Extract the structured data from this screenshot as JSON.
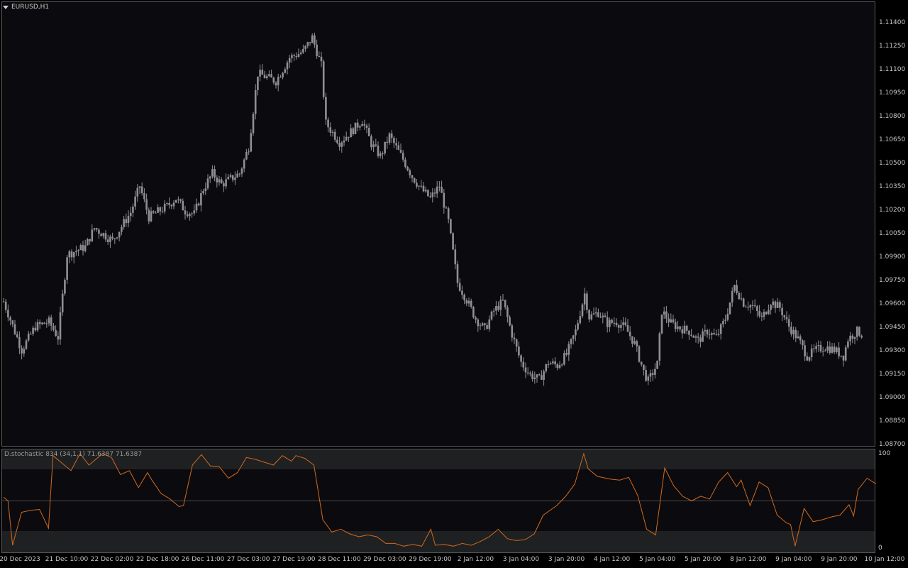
{
  "symbol": {
    "label": "EURUSD,H1"
  },
  "indicator": {
    "label": "D.stochastic 834 (34,1,1) 71.6387 71.6387",
    "level_high": "100",
    "level_low": "0",
    "line_color": "#d2691e",
    "band_color": "#1e2022",
    "mid_color": "#4a4a4a"
  },
  "colors": {
    "background": "#0b0b0f",
    "candle": "#8f8f95",
    "axis_text": "#c8c8c8",
    "frame": "#5a5a5a"
  },
  "price_axis": {
    "labels": [
      "1.11400",
      "1.11250",
      "1.11100",
      "1.10950",
      "1.10800",
      "1.10650",
      "1.10500",
      "1.10350",
      "1.10200",
      "1.10050",
      "1.09900",
      "1.09750",
      "1.09600",
      "1.09450",
      "1.09300",
      "1.09150",
      "1.09000",
      "1.08850",
      "1.08700"
    ]
  },
  "time_axis": {
    "labels": [
      "20 Dec 2023",
      "21 Dec 10:00",
      "22 Dec 02:00",
      "22 Dec 18:00",
      "26 Dec 11:00",
      "27 Dec 03:00",
      "27 Dec 19:00",
      "28 Dec 11:00",
      "29 Dec 03:00",
      "29 Dec 19:00",
      "2 Jan 12:00",
      "3 Jan 04:00",
      "3 Jan 20:00",
      "4 Jan 12:00",
      "5 Jan 04:00",
      "5 Jan 20:00",
      "8 Jan 12:00",
      "9 Jan 04:00",
      "9 Jan 20:00",
      "10 Jan 12:00"
    ]
  },
  "chart_data": [
    {
      "type": "candlestick",
      "title": "EURUSD,H1",
      "ylim": [
        1.0869,
        1.1144
      ],
      "close_path": [
        [
          0,
          1.0962
        ],
        [
          8,
          1.0931
        ],
        [
          14,
          1.0946
        ],
        [
          20,
          1.0949
        ],
        [
          24,
          1.0939
        ],
        [
          28,
          1.0992
        ],
        [
          36,
          1.0997
        ],
        [
          40,
          1.1009
        ],
        [
          48,
          1.1001
        ],
        [
          56,
          1.1019
        ],
        [
          60,
          1.1036
        ],
        [
          64,
          1.1016
        ],
        [
          72,
          1.1023
        ],
        [
          76,
          1.1028
        ],
        [
          80,
          1.102
        ],
        [
          84,
          1.1018
        ],
        [
          88,
          1.1034
        ],
        [
          92,
          1.1044
        ],
        [
          96,
          1.1037
        ],
        [
          104,
          1.1044
        ],
        [
          108,
          1.1061
        ],
        [
          112,
          1.1108
        ],
        [
          120,
          1.1103
        ],
        [
          126,
          1.1118
        ],
        [
          132,
          1.1122
        ],
        [
          136,
          1.1131
        ],
        [
          140,
          1.1113
        ],
        [
          142,
          1.1076
        ],
        [
          148,
          1.1064
        ],
        [
          154,
          1.1072
        ],
        [
          158,
          1.1078
        ],
        [
          162,
          1.1063
        ],
        [
          166,
          1.1055
        ],
        [
          170,
          1.1068
        ],
        [
          176,
          1.1053
        ],
        [
          180,
          1.1042
        ],
        [
          184,
          1.1034
        ],
        [
          188,
          1.1028
        ],
        [
          192,
          1.1036
        ],
        [
          196,
          1.1013
        ],
        [
          200,
          1.0974
        ],
        [
          204,
          1.0963
        ],
        [
          208,
          1.0951
        ],
        [
          212,
          1.0944
        ],
        [
          216,
          1.0956
        ],
        [
          220,
          1.0962
        ],
        [
          224,
          1.0941
        ],
        [
          228,
          1.0923
        ],
        [
          232,
          1.0915
        ],
        [
          236,
          1.0912
        ],
        [
          240,
          1.0923
        ],
        [
          244,
          1.0921
        ],
        [
          248,
          1.0928
        ],
        [
          252,
          1.0943
        ],
        [
          256,
          1.0967
        ],
        [
          258,
          1.0952
        ],
        [
          262,
          1.0955
        ],
        [
          266,
          1.0948
        ],
        [
          270,
          1.0949
        ],
        [
          274,
          1.0945
        ],
        [
          278,
          1.0935
        ],
        [
          282,
          1.0917
        ],
        [
          284,
          1.0911
        ],
        [
          288,
          1.0922
        ],
        [
          290,
          1.0956
        ],
        [
          294,
          1.0948
        ],
        [
          298,
          1.0945
        ],
        [
          302,
          1.0943
        ],
        [
          306,
          1.0937
        ],
        [
          310,
          1.0943
        ],
        [
          314,
          1.0939
        ],
        [
          318,
          1.0951
        ],
        [
          322,
          1.0972
        ],
        [
          326,
          1.0961
        ],
        [
          330,
          1.0959
        ],
        [
          334,
          1.0951
        ],
        [
          338,
          1.0962
        ],
        [
          342,
          1.0958
        ],
        [
          346,
          1.0946
        ],
        [
          350,
          1.0938
        ],
        [
          354,
          1.0927
        ],
        [
          358,
          1.0931
        ],
        [
          362,
          1.0933
        ],
        [
          366,
          1.0931
        ],
        [
          370,
          1.0927
        ],
        [
          372,
          1.0938
        ],
        [
          376,
          1.0943
        ],
        [
          378,
          1.0941
        ]
      ]
    },
    {
      "type": "line",
      "title": "D.stochastic 834 (34,1,1)",
      "ylim": [
        0,
        100
      ],
      "levels": [
        0,
        50,
        100
      ],
      "series": [
        {
          "name": "D.stochastic 834",
          "values": [
            [
              0,
              54
            ],
            [
              2,
              50
            ],
            [
              4,
              3
            ],
            [
              8,
              38
            ],
            [
              12,
              40
            ],
            [
              16,
              41
            ],
            [
              20,
              21
            ],
            [
              22,
              98
            ],
            [
              26,
              90
            ],
            [
              30,
              82
            ],
            [
              34,
              100
            ],
            [
              38,
              88
            ],
            [
              44,
              100
            ],
            [
              48,
              96
            ],
            [
              52,
              78
            ],
            [
              56,
              82
            ],
            [
              60,
              64
            ],
            [
              64,
              80
            ],
            [
              66,
              72
            ],
            [
              70,
              58
            ],
            [
              74,
              52
            ],
            [
              78,
              44
            ],
            [
              80,
              45
            ],
            [
              84,
              88
            ],
            [
              88,
              99
            ],
            [
              92,
              87
            ],
            [
              96,
              86
            ],
            [
              100,
              74
            ],
            [
              104,
              80
            ],
            [
              108,
              96
            ],
            [
              112,
              94
            ],
            [
              116,
              91
            ],
            [
              120,
              88
            ],
            [
              124,
              98
            ],
            [
              128,
              92
            ],
            [
              130,
              98
            ],
            [
              134,
              95
            ],
            [
              138,
              88
            ],
            [
              142,
              30
            ],
            [
              146,
              17
            ],
            [
              150,
              20
            ],
            [
              154,
              15
            ],
            [
              158,
              12
            ],
            [
              162,
              14
            ],
            [
              166,
              12
            ],
            [
              170,
              5
            ],
            [
              174,
              5
            ],
            [
              178,
              2
            ],
            [
              182,
              4
            ],
            [
              186,
              2
            ],
            [
              190,
              20
            ],
            [
              192,
              3
            ],
            [
              196,
              4
            ],
            [
              200,
              2
            ],
            [
              204,
              5
            ],
            [
              208,
              3
            ],
            [
              212,
              7
            ],
            [
              216,
              12
            ],
            [
              220,
              20
            ],
            [
              224,
              10
            ],
            [
              228,
              8
            ],
            [
              232,
              9
            ],
            [
              236,
              15
            ],
            [
              240,
              35
            ],
            [
              246,
              45
            ],
            [
              250,
              55
            ],
            [
              254,
              68
            ],
            [
              258,
              100
            ],
            [
              260,
              84
            ],
            [
              264,
              76
            ],
            [
              270,
              73
            ],
            [
              274,
              72
            ],
            [
              278,
              75
            ],
            [
              282,
              56
            ],
            [
              286,
              20
            ],
            [
              290,
              14
            ],
            [
              294,
              85
            ],
            [
              298,
              66
            ],
            [
              302,
              55
            ],
            [
              306,
              50
            ],
            [
              310,
              55
            ],
            [
              314,
              52
            ],
            [
              318,
              70
            ],
            [
              322,
              80
            ],
            [
              326,
              65
            ],
            [
              328,
              72
            ],
            [
              332,
              45
            ],
            [
              336,
              70
            ],
            [
              340,
              64
            ],
            [
              344,
              35
            ],
            [
              348,
              27
            ],
            [
              350,
              25
            ],
            [
              352,
              2
            ],
            [
              356,
              42
            ],
            [
              360,
              28
            ],
            [
              364,
              30
            ],
            [
              368,
              33
            ],
            [
              372,
              35
            ],
            [
              376,
              46
            ],
            [
              378,
              34
            ],
            [
              380,
              62
            ],
            [
              384,
              74
            ],
            [
              388,
              68
            ]
          ]
        }
      ]
    }
  ]
}
